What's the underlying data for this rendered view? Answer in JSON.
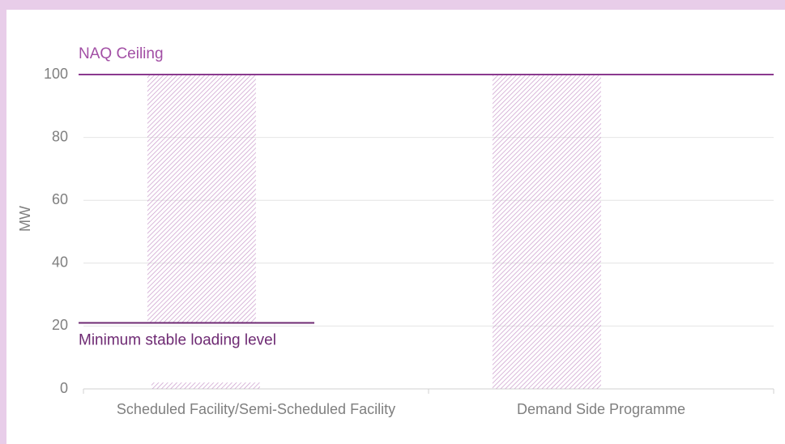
{
  "chart_data": {
    "type": "floating-bar",
    "ylabel": "MW",
    "categories": [
      "Scheduled Facility/Semi-Scheduled Facility",
      "Demand Side Programme"
    ],
    "ranges": [
      [
        [
          21,
          100
        ],
        [
          0,
          1
        ]
      ],
      [
        [
          0,
          100
        ]
      ]
    ],
    "color": "#c99acb",
    "ylim": [
      0,
      100
    ],
    "yticks": [
      0,
      20,
      40,
      60,
      80,
      100
    ],
    "grid": true,
    "annotations": [
      {
        "label": "NAQ Ceiling",
        "value": 100,
        "color": "#a24fa5"
      },
      {
        "label": "Minimum stable loading level",
        "value": 21,
        "color": "#6e2a73"
      }
    ]
  }
}
